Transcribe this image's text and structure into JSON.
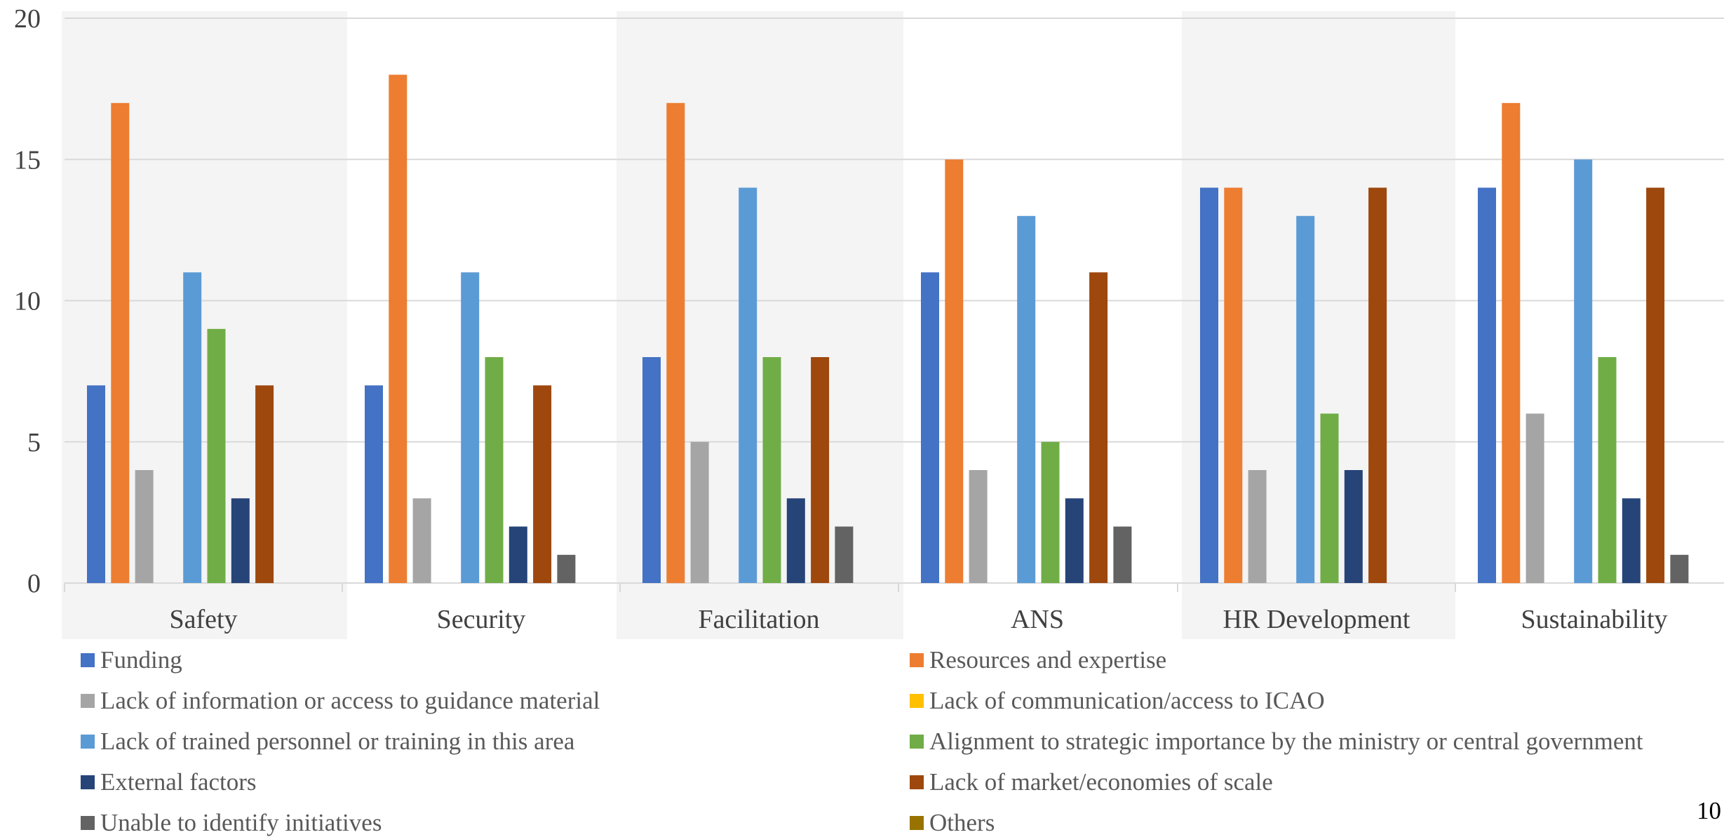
{
  "chart_data": {
    "type": "bar",
    "categories": [
      "Safety",
      "Security",
      "Facilitation",
      "ANS",
      "HR Development",
      "Sustainability"
    ],
    "series": [
      {
        "name": "Funding",
        "color": "#4472C4",
        "values": [
          7,
          7,
          8,
          11,
          14,
          14
        ]
      },
      {
        "name": "Resources and expertise",
        "color": "#ED7D31",
        "values": [
          17,
          18,
          17,
          15,
          14,
          17
        ]
      },
      {
        "name": "Lack of information or access to guidance material",
        "color": "#A5A5A5",
        "values": [
          4,
          3,
          5,
          4,
          4,
          6
        ]
      },
      {
        "name": "Lack of communication/access to ICAO",
        "color": "#FFC000",
        "values": [
          0,
          0,
          0,
          0,
          0,
          0
        ]
      },
      {
        "name": "Lack of trained personnel or training in this area",
        "color": "#5B9BD5",
        "values": [
          11,
          11,
          14,
          13,
          13,
          15
        ]
      },
      {
        "name": "Alignment to strategic importance by the ministry or central government",
        "color": "#70AD47",
        "values": [
          9,
          8,
          8,
          5,
          6,
          8
        ]
      },
      {
        "name": "External factors",
        "color": "#264478",
        "values": [
          3,
          2,
          3,
          3,
          4,
          3
        ]
      },
      {
        "name": "Lack of market/economies of scale",
        "color": "#9E480E",
        "values": [
          7,
          7,
          8,
          11,
          14,
          14
        ]
      },
      {
        "name": "Unable to identify initiatives",
        "color": "#636363",
        "values": [
          0,
          1,
          2,
          2,
          0,
          1
        ]
      },
      {
        "name": "Others",
        "color": "#997300",
        "values": [
          0,
          0,
          0,
          0,
          0,
          0
        ]
      }
    ],
    "ylim": [
      0,
      20
    ],
    "yticks": [
      "0",
      "5",
      "10",
      "15",
      "20"
    ],
    "grid": true,
    "legend_position": "bottom",
    "shaded_bands": [
      "Safety",
      "Facilitation",
      "HR Development"
    ]
  },
  "page_number": "10"
}
